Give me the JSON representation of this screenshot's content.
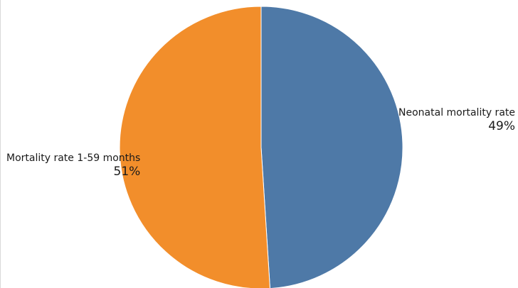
{
  "chart_data": {
    "type": "pie",
    "title": "",
    "slices": [
      {
        "label": "Neonatal mortality rate",
        "value": 49,
        "display": "49%",
        "color": "#4e79a7"
      },
      {
        "label": "Mortality rate 1-59 months",
        "value": 51,
        "display": "51%",
        "color": "#f28e2b"
      }
    ],
    "legend": "none",
    "start_angle": "12 o'clock",
    "direction": "clockwise"
  }
}
